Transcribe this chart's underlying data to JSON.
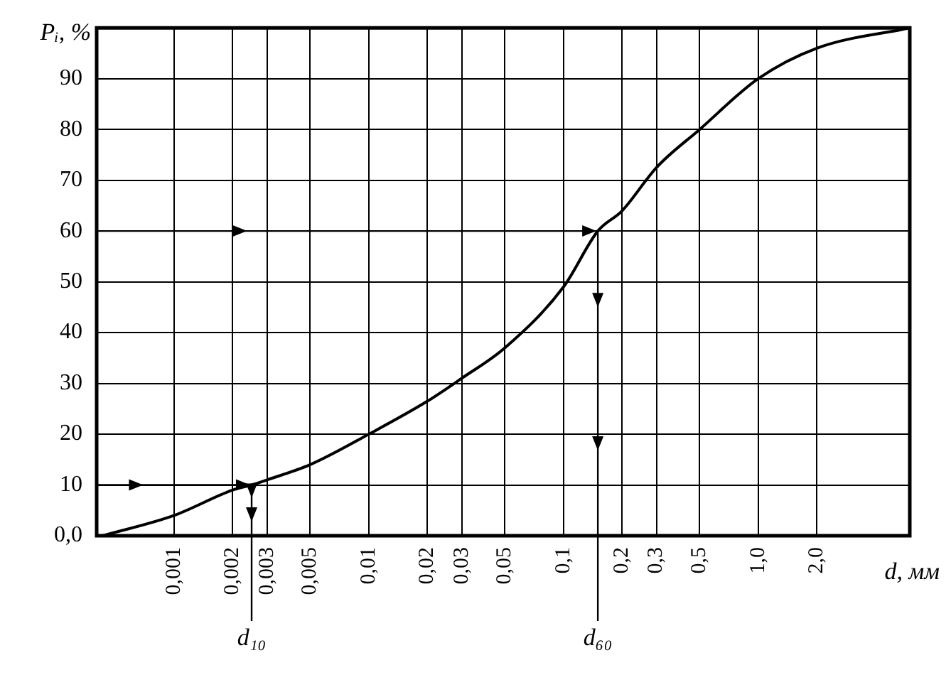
{
  "chart_data": {
    "type": "line",
    "xlabel": "d, мм",
    "ylabel": "Pᵢ, %",
    "log": "x",
    "x": [
      0.00043,
      0.001,
      0.002,
      0.0025,
      0.003,
      0.005,
      0.01,
      0.02,
      0.03,
      0.05,
      0.1,
      0.15,
      0.2,
      0.3,
      0.5,
      1.0,
      2.0,
      6
    ],
    "series": [
      {
        "color": "#000000",
        "values": [
          0,
          4,
          9,
          10,
          11,
          14,
          20,
          26.5,
          31,
          37,
          49,
          60,
          64,
          72.5,
          80,
          90,
          96,
          100
        ]
      }
    ],
    "xlim": [
      0.0004,
      6
    ],
    "xticks": [
      {
        "value": 0.001,
        "label": "0,001"
      },
      {
        "value": 0.002,
        "label": "0,002"
      },
      {
        "value": 0.003,
        "label": "0,003"
      },
      {
        "value": 0.005,
        "label": "0,005"
      },
      {
        "value": 0.01,
        "label": "0,01"
      },
      {
        "value": 0.02,
        "label": "0,02"
      },
      {
        "value": 0.03,
        "label": "0,03"
      },
      {
        "value": 0.05,
        "label": "0,05"
      },
      {
        "value": 0.1,
        "label": "0,1"
      },
      {
        "value": 0.2,
        "label": "0,2"
      },
      {
        "value": 0.3,
        "label": "0,3"
      },
      {
        "value": 0.5,
        "label": "0,5"
      },
      {
        "value": 1.0,
        "label": "1,0"
      },
      {
        "value": 2.0,
        "label": "2,0"
      }
    ],
    "ylim": [
      0,
      100
    ],
    "yticks": [
      {
        "value": 0,
        "label": "0,0"
      },
      10,
      20,
      30,
      40,
      50,
      60,
      70,
      80,
      90
    ],
    "annotations": [
      {
        "text": "d₁₀",
        "x": 0.0025
      },
      {
        "text": "d₆₀",
        "x": 0.15
      }
    ],
    "grid": true,
    "marker": "none",
    "line_style": "solid",
    "legend": false
  }
}
